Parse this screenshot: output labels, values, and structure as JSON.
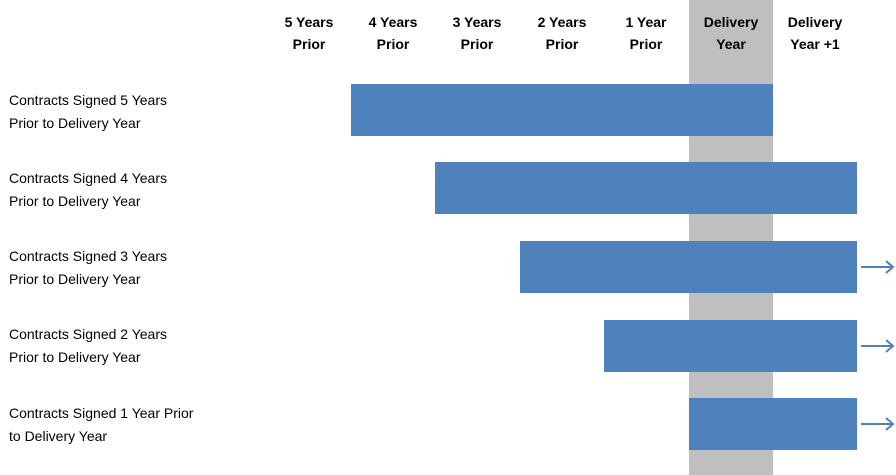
{
  "columns": [
    {
      "line1": "5 Years",
      "line2": "Prior"
    },
    {
      "line1": "4 Years",
      "line2": "Prior"
    },
    {
      "line1": "3 Years",
      "line2": "Prior"
    },
    {
      "line1": "2 Years",
      "line2": "Prior"
    },
    {
      "line1": "1 Year",
      "line2": "Prior"
    },
    {
      "line1": "Delivery",
      "line2": "Year"
    },
    {
      "line1": "Delivery",
      "line2": "Year +1"
    }
  ],
  "highlighted_column": "Delivery Year",
  "rows": [
    {
      "label_line1": "Contracts Signed 5 Years",
      "label_line2": "Prior to Delivery Year",
      "start_column": 1,
      "end_column": 5,
      "extends_beyond": false
    },
    {
      "label_line1": "Contracts Signed 4 Years",
      "label_line2": "Prior to Delivery Year",
      "start_column": 2,
      "end_column": 6,
      "extends_beyond": false
    },
    {
      "label_line1": "Contracts Signed 3 Years",
      "label_line2": "Prior to Delivery Year",
      "start_column": 3,
      "end_column": 6,
      "extends_beyond": true
    },
    {
      "label_line1": "Contracts Signed 2 Years",
      "label_line2": "Prior to Delivery Year",
      "start_column": 4,
      "end_column": 6,
      "extends_beyond": true
    },
    {
      "label_line1": "Contracts Signed 1 Year Prior",
      "label_line2": "to Delivery Year",
      "start_column": 5,
      "end_column": 6,
      "extends_beyond": true
    }
  ],
  "colors": {
    "bar": "#4f81bd",
    "highlight": "#bfbfbf",
    "arrow": "#4f81bd"
  }
}
